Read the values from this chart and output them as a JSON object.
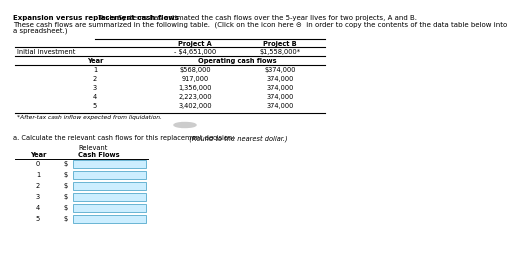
{
  "title_bold": "Expansion versus replacement cash flows",
  "title_rest1": "  Tesla Systems has estimated the cash flows over the 5-year lives for two projects, A and B.",
  "title_rest2": "These cash flows are summarized in the following table.  (Click on the icon here ⊝  in order to copy the contents of the data table below into",
  "title_rest3": "a spreadsheet.)",
  "col_headers": [
    "Project A",
    "Project B"
  ],
  "initial_investment_label": "Initial investment",
  "initial_investment_a": "- $4,651,000",
  "initial_investment_b": "$1,558,000*",
  "operating_label": "Operating cash flows",
  "year_label": "Year",
  "years": [
    1,
    2,
    3,
    4,
    5
  ],
  "proj_a_values": [
    "$568,000",
    "917,000",
    "1,356,000",
    "2,223,000",
    "3,402,000"
  ],
  "proj_b_values": [
    "$374,000",
    "374,000",
    "374,000",
    "374,000",
    "374,000"
  ],
  "footnote": "*After-tax cash inflow expected from liquidation.",
  "section_a_label": "a. Calculate the relevant cash flows for this replacement decision:",
  "section_a_note": "  (Round to the nearest dollar.)",
  "relevant_label": "Relevant",
  "cash_flows_label": "Cash Flows",
  "year_col_label": "Year",
  "input_years": [
    0,
    1,
    2,
    3,
    4,
    5
  ],
  "dollar_sign": "$",
  "input_box_color": "#cceeff",
  "input_box_border": "#55aacc",
  "bg_color": "#ffffff",
  "text_color": "#000000"
}
